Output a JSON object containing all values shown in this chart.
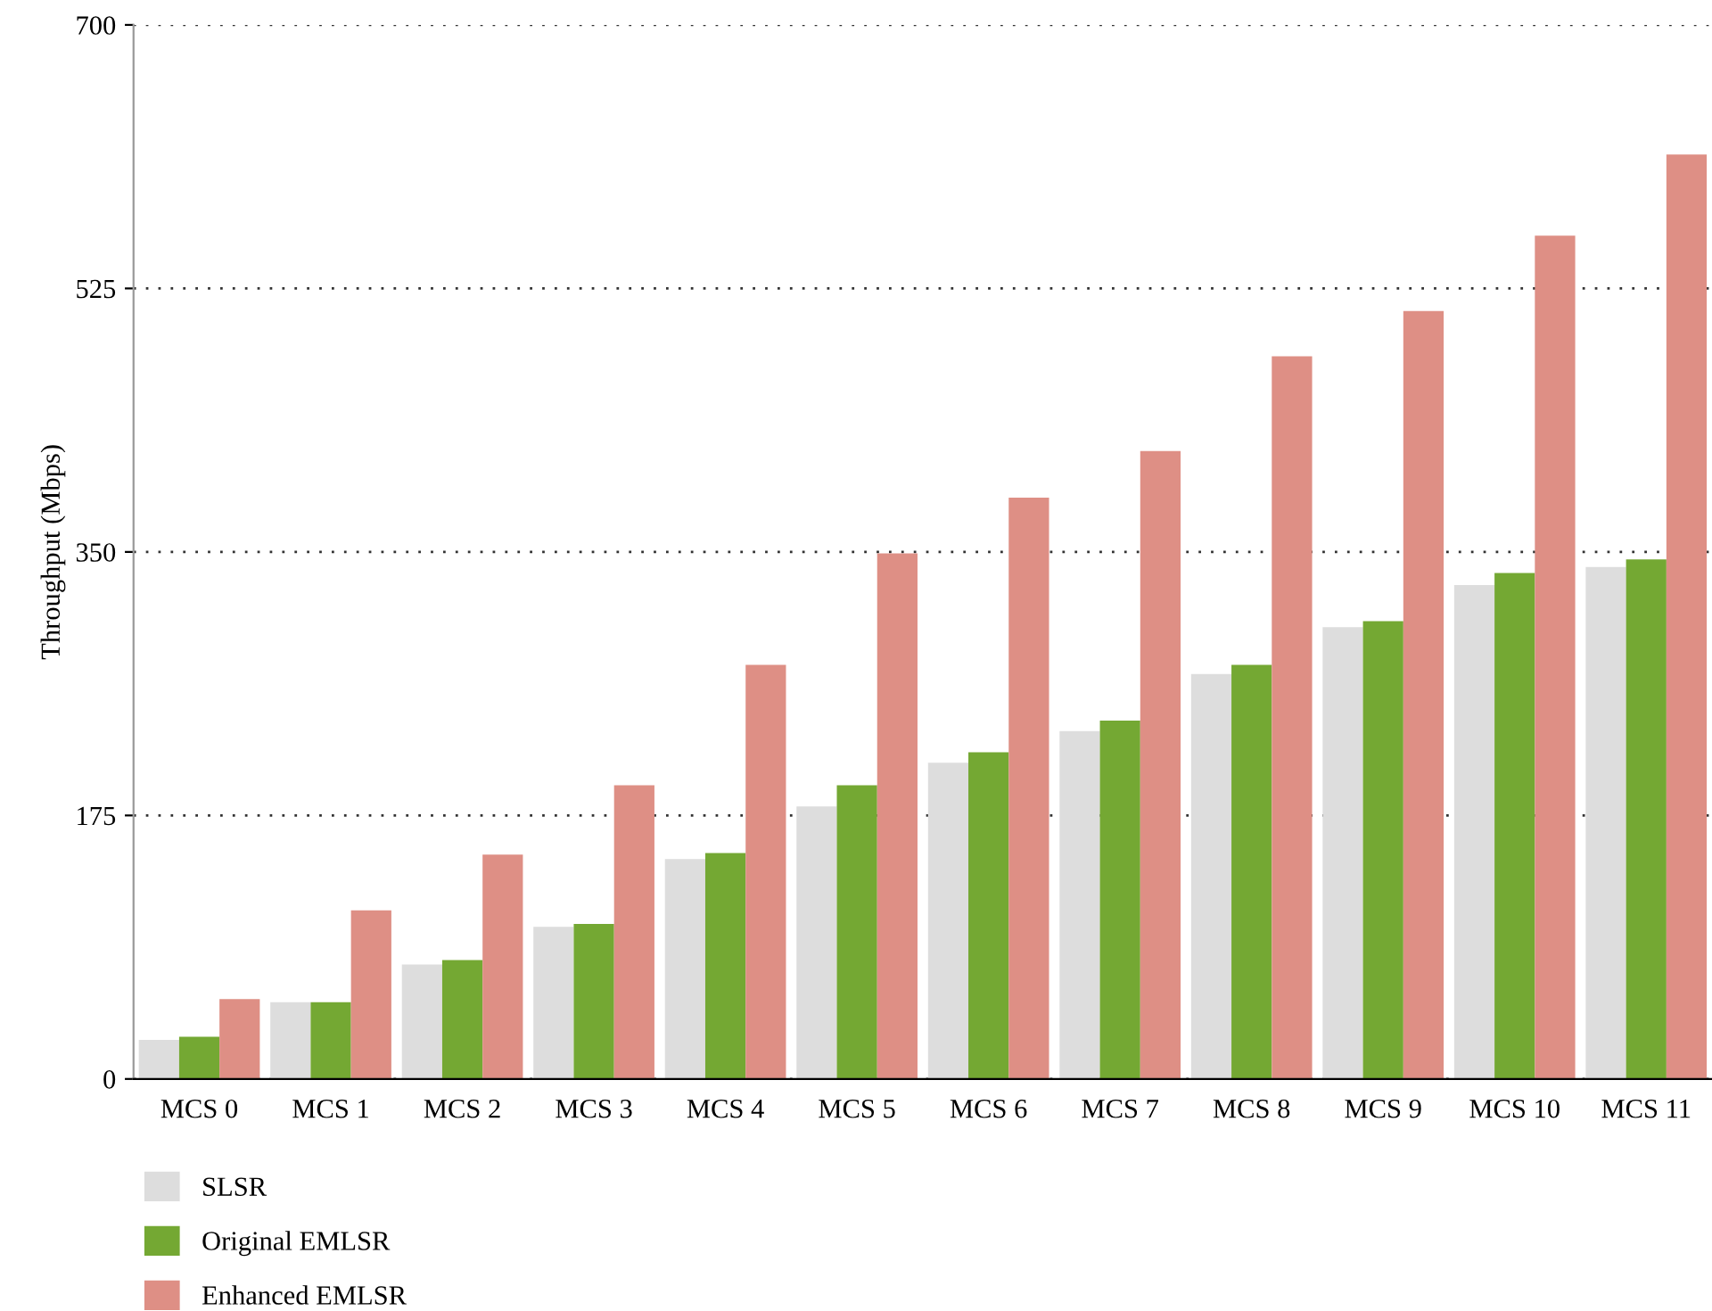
{
  "chart_data": {
    "type": "bar",
    "ylabel": "Throughput (Mbps)",
    "categories": [
      "MCS 0",
      "MCS 1",
      "MCS 2",
      "MCS 3",
      "MCS 4",
      "MCS 5",
      "MCS 6",
      "MCS 7",
      "MCS 8",
      "MCS 9",
      "MCS 10",
      "MCS 11"
    ],
    "series": [
      {
        "name": "SLSR",
        "color": "#dddddd",
        "values": [
          26,
          51,
          76,
          101,
          146,
          181,
          210,
          231,
          269,
          300,
          328,
          340
        ]
      },
      {
        "name": "Original EMLSR",
        "color": "#74a833",
        "values": [
          28,
          51,
          79,
          103,
          150,
          195,
          217,
          238,
          275,
          304,
          336,
          345
        ]
      },
      {
        "name": "Enhanced EMLSR",
        "color": "#de8f85",
        "values": [
          53,
          112,
          149,
          195,
          275,
          349,
          386,
          417,
          480,
          510,
          560,
          614
        ]
      }
    ],
    "ylim": [
      0,
      700
    ],
    "yticks": [
      0,
      175,
      350,
      525,
      700
    ],
    "grid": "y",
    "legend": "bottom left"
  }
}
